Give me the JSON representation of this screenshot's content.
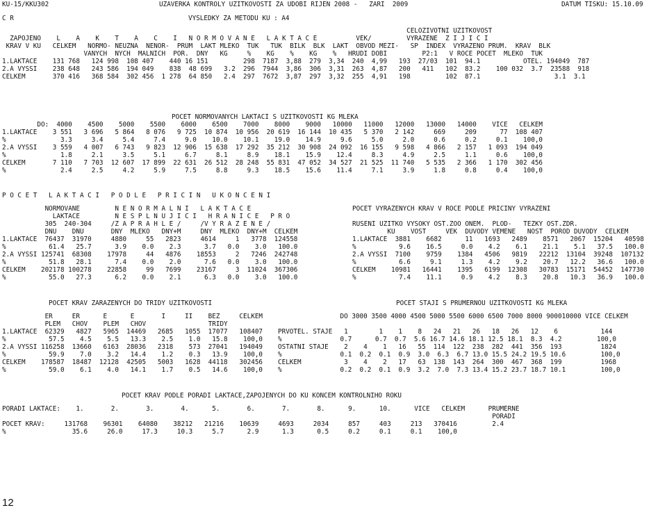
{
  "header": {
    "left": "KU-15/KKU302",
    "title": "UZAVERKA KONTROLY UZITKOVOSTI ZA UDOBI RIJEN 2008 -   ZARI  2009",
    "date": "DATUM TISKU: 15.10.09",
    "sub_left": "C R",
    "sub_title": "VYSLEDKY ZA METODU KU : A4"
  },
  "sec1": {
    "lines": [
      "                                                                                                        CELOZIVOTNI UZITKOVOST",
      "  ZAPOJENO    L    A    K    T    A    C    I   N O R M O V A N E   L A K T A C E          VEK/         VYRAZENE  Z I J I C I",
      " KRAV V KU   CELKEM   NORMO- NEUZNA  NENOR-  PRUM  LAKT MLEKO  TUK   TUK  BILK  BLK  LAKT  OBVOD MEZI-   SP  INDEX  VYRAZENO PRUM.  KRAV  BLK",
      "                     VANYCH  NYCH  MALNICH  POR.  DNY   KG     %    KG    %    KG    %   HRUDI DOBI         P2:1   V ROCE POCET  MLEKO  TUK",
      "1.LAKTACE    131 768   124 998  108 407    440 16 151         298  7187  3,88  279  3,34  240  4,99   193  27/03  101  94.1           OTEL. 194049  787",
      "2.A VYSSI    238 648   243 586  194 049    838  48 699   3.2  296  7944  3,86  306  3,31  263  4,87   200   411   102  83.2    100 032  3.7  23588  918",
      "CELKEM       370 416   368 584  302 456  1 278  64 850   2.4  297  7672  3,87  297  3,32  255  4,91   198         102  87.1                   3.1  3.1"
    ]
  },
  "sec2": {
    "title": "POCET NORMOVANYCH LAKTACI S UZITKOVOSTI KG MLEKA",
    "lines": [
      "         DO:  4000    4500    5000    5500    6000    6500    7000    8000    9000   10000   11000   12000   13000   14000    VICE   CELKEM",
      "1.LAKTACE    3 551   3 696   5 864   8 076   9 725  10 874  10 956  20 619  16 144  10 435   5 370   2 142     669     209      77  108 407",
      "%              3.3     3.4     5.4     7.4     9.0    10.0    10.1    19.0    14.9     9.6     5.0     2.0     0.6     0.2     0.1    100,0",
      "2.A VYSSI    3 559   4 007   6 743   9 823  12 906  15 638  17 292  35 212  30 908  24 092  16 155   9 598   4 866   2 157   1 093  194 049",
      "%              1.8     2.1     3.5     5.1     6.7     8.1     8.9    18.1    15.9    12.4     8.3     4.9     2.5     1.1     0.6    100,0",
      "CELKEM       7 110   7 703  12 607  17 899  22 631  26 512  28 248  55 831  47 052  34 527  21 525  11 740   5 535   2 366   1 170  302 456",
      "%              2.4     2.5     4.2     5.9     7.5     8.8     9.3    18.5    15.6    11.4     7.1     3.9     1.8     0.8     0.4    100,0"
    ]
  },
  "sec3": {
    "title": "P O C E T   L A K T A C I   P O D L E   P R I C I N   U K O N C E N I",
    "left_lines": [
      "           NORMOVANE         N E N O R M A L N I   L A K T A C E",
      "             LAKTACE         N E S P L N U J I C I   H R A N I C E   P R O",
      "           305  240-304     /Z A P R A H L E /     /V Y R A Z E N E /",
      "           DNU    DNU       DNY  MLEKO   DNY+M     DNY  MLEKO  DNY+M  CELKEM",
      "1.LAKTACE  76437  31970     4880     55   2823     4614     1   3778  124558",
      "%           61.4   25.7      3.9    0.0    2.3      3.7   0.0    3.0   100.0",
      "2.A VYSSI 125741  68308    17978     44   4876    18553     2   7246  242748",
      "%           51.8   28.1      7.4    0.0    2.0      7.6   0.0    3.0   100.0",
      "CELKEM    202178 100278    22858     99   7699    23167     3  11024  367306",
      "%           55.0   27.3      6.2    0.0    2.1      6.3   0.0    3.0   100.0"
    ],
    "right_lines": [
      "POCET VYRAZENYCH KRAV V ROCE PODLE PRICINY VYRAZENI",
      "",
      "RUSENI UZITKO VYSOKY OST.ZOO ONEM.  PLOD-   TEZKY OST.ZDR.",
      "         KU    VOST     VEK  DUVODY VEMENE   NOST  POROD DUVODY  CELKEM",
      "1.LAKTACE  3881    6682      11   1693   2489    8571   2067  15204   40598",
      "%           9.6    16.5     0.0    4.2    6.1    21.1    5.1   37.5   100.0",
      "2.A VYSSI  7100    9759    1384   4506   9819   22212  13104  39248  107132",
      "%           6.6     9.1     1.3    4.2    9.2    20.7   12.2   36.6   100.0",
      "CELKEM    10981   16441    1395   6199  12308   30783  15171  54452  147730",
      "%           7.4    11.1     0.9    4.2    8.3    20.8   10.3   36.9   100.0"
    ]
  },
  "sec4": {
    "left_title": "POCET KRAV ZARAZENYCH DO TRIDY UZITKOVOSTI",
    "left_lines": [
      "           ER     ER      E      E       I     II    BEZ     CELKEM",
      "           PLEM   CHOV    PLEM   CHOV                TRIDY",
      "1.LAKTACE  62329   4827   5965  14469   2685   1055  17077   108407",
      "%           57.5    4.5    5.5   13.3    2.5    1.0   15.8    100,0",
      "2.A VYSSI 116258  13660   6163  28036   2318    573  27041   194049",
      "%           59.9    7.0    3.2   14.4    1.2    0.3   13.9    100,0",
      "CELKEM    178587  18487  12128  42505   5003   1628  44118   302456",
      "%           59.0    6.1    4.0   14.1    1.7    0.5   14.6    100,0"
    ],
    "right_title": "POCET STAJI S PRUMERNOU UZITKOVOSTI KG MLEKA",
    "right_lines": [
      "                DO 3000 3500 4000 4500 5000 5500 6000 6500 7000 8000 900010000 VICE CELKEM",
      "",
      "PRVOTEL. STAJE   1        1    1    8   24   21   26   18   26   12    6           144",
      "%               0.7      0.7  0.7  5.6 16.7 14.6 18.1 12.5 18.1  8.3  4.2         100,0",
      "OSTATNI STAJE    2    4    1   16   55  114  122  238  282  441  356  193          1824",
      "%               0.1  0.2  0.1  0.9  3.0  6.3  6.7 13.0 15.5 24.2 19.5 10.6         100,0",
      "CELKEM           3    4    2   17   63  138  143  264  300  467  368  199          1968",
      "%               0.2  0.2  0.1  0.9  3.2  7.0  7.3 13.4 15.2 23.7 18.7 10.1         100,0"
    ]
  },
  "sec5": {
    "title": "POCET KRAV PODLE PORADI LAKTACE,ZAPOJENYCH DO KU KONCEM KONTROLNIHO ROKU",
    "lines": [
      "PORADI LAKTACE:    1.       2.       3.       4.      5.       6.       7.       8.      9.      10.      VICE   CELKEM      PRUMERNE",
      "                                                                                                                              PORADI",
      "POCET KRAV:     131768    96301    64080    38212   21216    10639     4693     2034     857     403     213   370416         2.4",
      "%                 35.6     26.0     17.3     10.3     5.7      2.9      1.3      0.5     0.2     0.1     0.1    100,0"
    ]
  },
  "footer": {
    "page_number": "12"
  }
}
